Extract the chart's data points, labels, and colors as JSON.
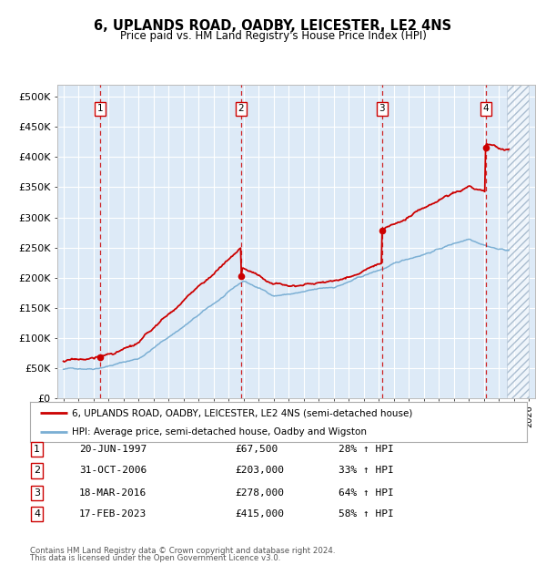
{
  "title": "6, UPLANDS ROAD, OADBY, LEICESTER, LE2 4NS",
  "subtitle": "Price paid vs. HM Land Registry's House Price Index (HPI)",
  "property_label": "6, UPLANDS ROAD, OADBY, LEICESTER, LE2 4NS (semi-detached house)",
  "hpi_label": "HPI: Average price, semi-detached house, Oadby and Wigston",
  "footer1": "Contains HM Land Registry data © Crown copyright and database right 2024.",
  "footer2": "This data is licensed under the Open Government Licence v3.0.",
  "transactions": [
    {
      "num": 1,
      "date": "20-JUN-1997",
      "price": 67500,
      "hpi_pct": "28% ↑ HPI",
      "year": 1997.47
    },
    {
      "num": 2,
      "date": "31-OCT-2006",
      "price": 203000,
      "hpi_pct": "33% ↑ HPI",
      "year": 2006.83
    },
    {
      "num": 3,
      "date": "18-MAR-2016",
      "price": 278000,
      "hpi_pct": "64% ↑ HPI",
      "year": 2016.21
    },
    {
      "num": 4,
      "date": "17-FEB-2023",
      "price": 415000,
      "hpi_pct": "58% ↑ HPI",
      "year": 2023.12
    }
  ],
  "xlim": [
    1994.6,
    2026.4
  ],
  "ylim": [
    0,
    520000
  ],
  "yticks": [
    0,
    50000,
    100000,
    150000,
    200000,
    250000,
    300000,
    350000,
    400000,
    450000,
    500000
  ],
  "ytick_labels": [
    "£0",
    "£50K",
    "£100K",
    "£150K",
    "£200K",
    "£250K",
    "£300K",
    "£350K",
    "£400K",
    "£450K",
    "£500K"
  ],
  "property_color": "#cc0000",
  "hpi_color": "#7bafd4",
  "bg_color": "#ddeaf7",
  "hatch_color": "#aabdd0",
  "grid_color": "#ffffff",
  "dashed_line_color": "#cc0000",
  "hatch_start": 2024.5,
  "current_year_end": 2024.2
}
